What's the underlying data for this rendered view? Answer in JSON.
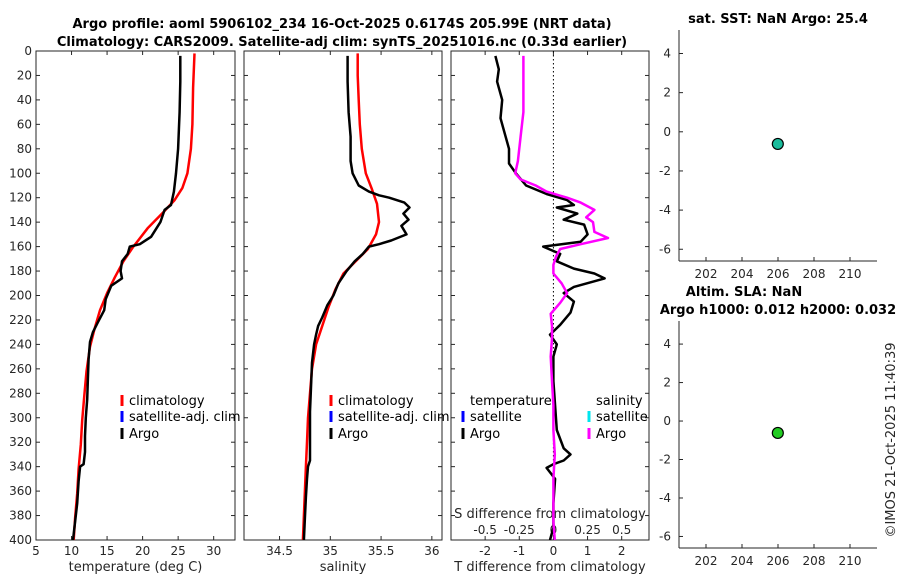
{
  "title": {
    "line1": "Argo profile: aoml 5906102_234 16-Oct-2025 0.6174S 205.99E (NRT data)",
    "line2": "Climatology: CARS2009. Satellite-adj clim: synTS_20251016.nc (0.33d earlier)"
  },
  "stamp": "©IMOS 21-Oct-2025 11:40:39",
  "colors": {
    "climatology": "#ff0000",
    "satellite": "#0000ff",
    "argo": "#000000",
    "salinity_argo": "#ff00ff",
    "salinity_satellite": "#00e5ee",
    "sst_marker": "#1abc9c",
    "sla_marker": "#22cc22"
  },
  "chart_data": [
    {
      "id": "temperature",
      "type": "line",
      "xlabel": "temperature (deg C)",
      "ylabel": "depth",
      "xlim": [
        5,
        33
      ],
      "ylim": [
        400,
        0
      ],
      "xticks": [
        5,
        10,
        15,
        20,
        25,
        30
      ],
      "yticks": [
        0,
        20,
        40,
        60,
        80,
        100,
        120,
        140,
        160,
        180,
        200,
        220,
        240,
        260,
        280,
        300,
        320,
        340,
        360,
        380,
        400
      ],
      "legend": [
        "climatology",
        "satellite-adj. clim",
        "Argo"
      ],
      "series": [
        {
          "name": "climatology",
          "color": "#ff0000",
          "points": [
            [
              27.3,
              2
            ],
            [
              27.1,
              30
            ],
            [
              27.0,
              60
            ],
            [
              26.8,
              80
            ],
            [
              26.3,
              100
            ],
            [
              25.6,
              112
            ],
            [
              24.5,
              122
            ],
            [
              22.9,
              132
            ],
            [
              20.7,
              145
            ],
            [
              18.7,
              160
            ],
            [
              17.3,
              172
            ],
            [
              16.1,
              185
            ],
            [
              15.0,
              198
            ],
            [
              14.0,
              212
            ],
            [
              13.2,
              228
            ],
            [
              12.6,
              242
            ],
            [
              12.1,
              262
            ],
            [
              11.8,
              282
            ],
            [
              11.5,
              302
            ],
            [
              11.3,
              322
            ],
            [
              11.0,
              342
            ],
            [
              10.8,
              362
            ],
            [
              10.5,
              382
            ],
            [
              10.3,
              400
            ]
          ]
        },
        {
          "name": "Argo",
          "color": "#000000",
          "points": [
            [
              25.3,
              4
            ],
            [
              25.3,
              25
            ],
            [
              25.2,
              50
            ],
            [
              25.0,
              80
            ],
            [
              24.7,
              100
            ],
            [
              24.4,
              115
            ],
            [
              24.0,
              126
            ],
            [
              23.1,
              130
            ],
            [
              22.5,
              140
            ],
            [
              21.2,
              152
            ],
            [
              19.6,
              158
            ],
            [
              18.2,
              160
            ],
            [
              17.9,
              166
            ],
            [
              17.1,
              172
            ],
            [
              16.9,
              180
            ],
            [
              17.1,
              186
            ],
            [
              15.6,
              192
            ],
            [
              14.8,
              203
            ],
            [
              14.6,
              212
            ],
            [
              13.7,
              222
            ],
            [
              13.0,
              230
            ],
            [
              12.6,
              238
            ],
            [
              12.4,
              252
            ],
            [
              12.3,
              268
            ],
            [
              12.2,
              285
            ],
            [
              12.0,
              300
            ],
            [
              11.9,
              315
            ],
            [
              11.9,
              328
            ],
            [
              11.7,
              338
            ],
            [
              11.2,
              340
            ],
            [
              11.0,
              352
            ],
            [
              10.8,
              370
            ],
            [
              10.5,
              385
            ],
            [
              10.2,
              400
            ]
          ]
        }
      ]
    },
    {
      "id": "salinity",
      "type": "line",
      "xlabel": "salinity",
      "xlim": [
        34.15,
        36.1
      ],
      "ylim": [
        400,
        0
      ],
      "xticks": [
        34.5,
        35,
        35.5,
        36
      ],
      "xticklabels": [
        "34.5",
        "35",
        "35.5",
        "36"
      ],
      "legend": [
        "climatology",
        "satellite-adj. clim",
        "Argo"
      ],
      "series": [
        {
          "name": "climatology",
          "color": "#ff0000",
          "points": [
            [
              35.27,
              2
            ],
            [
              35.27,
              20
            ],
            [
              35.28,
              40
            ],
            [
              35.29,
              60
            ],
            [
              35.31,
              80
            ],
            [
              35.35,
              100
            ],
            [
              35.41,
              113
            ],
            [
              35.46,
              125
            ],
            [
              35.48,
              140
            ],
            [
              35.45,
              150
            ],
            [
              35.37,
              162
            ],
            [
              35.25,
              172
            ],
            [
              35.13,
              182
            ],
            [
              35.05,
              195
            ],
            [
              34.98,
              210
            ],
            [
              34.92,
              225
            ],
            [
              34.86,
              240
            ],
            [
              34.82,
              260
            ],
            [
              34.8,
              280
            ],
            [
              34.78,
              300
            ],
            [
              34.77,
              320
            ],
            [
              34.76,
              340
            ],
            [
              34.75,
              360
            ],
            [
              34.74,
              380
            ],
            [
              34.73,
              400
            ]
          ]
        },
        {
          "name": "Argo",
          "color": "#000000",
          "points": [
            [
              35.17,
              4
            ],
            [
              35.17,
              25
            ],
            [
              35.18,
              50
            ],
            [
              35.2,
              70
            ],
            [
              35.2,
              90
            ],
            [
              35.22,
              100
            ],
            [
              35.28,
              110
            ],
            [
              35.38,
              115
            ],
            [
              35.48,
              118
            ],
            [
              35.58,
              120
            ],
            [
              35.73,
              124
            ],
            [
              35.78,
              128
            ],
            [
              35.72,
              133
            ],
            [
              35.77,
              138
            ],
            [
              35.7,
              143
            ],
            [
              35.75,
              150
            ],
            [
              35.6,
              155
            ],
            [
              35.48,
              158
            ],
            [
              35.38,
              160
            ],
            [
              35.32,
              166
            ],
            [
              35.24,
              172
            ],
            [
              35.16,
              180
            ],
            [
              35.08,
              190
            ],
            [
              35.03,
              200
            ],
            [
              34.97,
              208
            ],
            [
              34.92,
              218
            ],
            [
              34.88,
              225
            ],
            [
              34.86,
              232
            ],
            [
              34.84,
              240
            ],
            [
              34.82,
              255
            ],
            [
              34.81,
              275
            ],
            [
              34.8,
              295
            ],
            [
              34.8,
              315
            ],
            [
              34.8,
              335
            ],
            [
              34.78,
              340
            ],
            [
              34.77,
              350
            ],
            [
              34.76,
              365
            ],
            [
              34.75,
              382
            ],
            [
              34.74,
              400
            ]
          ]
        }
      ]
    },
    {
      "id": "differences",
      "type": "line",
      "xlabel": "T difference from climatology",
      "top_label": "S difference from climatology",
      "xlim": [
        -3,
        2.8
      ],
      "ylim": [
        400,
        0
      ],
      "xticks": [
        -2,
        -1,
        0,
        1,
        2
      ],
      "xticklabels": [
        "-2",
        "-1",
        "0",
        "1",
        "2"
      ],
      "s_xticks": [
        -0.5,
        -0.25,
        0,
        0.25,
        0.5
      ],
      "s_xticklabels": [
        "-0.5",
        "-0.25",
        "0",
        "0.25",
        "0.5"
      ],
      "s_scale": 4,
      "legend_temperature_title": "temperature",
      "legend_salinity_title": "salinity",
      "legend_temperature": [
        "satellite",
        "Argo"
      ],
      "legend_salinity": [
        "satellite",
        "Argo"
      ],
      "series": [
        {
          "name": "T Argo",
          "color": "#000000",
          "points": [
            [
              -1.7,
              4
            ],
            [
              -1.6,
              15
            ],
            [
              -1.65,
              25
            ],
            [
              -1.5,
              40
            ],
            [
              -1.55,
              55
            ],
            [
              -1.4,
              70
            ],
            [
              -1.3,
              80
            ],
            [
              -1.3,
              92
            ],
            [
              -1.1,
              100
            ],
            [
              -0.8,
              110
            ],
            [
              -0.2,
              117
            ],
            [
              0.4,
              122
            ],
            [
              0.6,
              126
            ],
            [
              0.1,
              128
            ],
            [
              0.7,
              133
            ],
            [
              0.3,
              138
            ],
            [
              0.9,
              142
            ],
            [
              1.0,
              150
            ],
            [
              0.8,
              156
            ],
            [
              -0.3,
              160
            ],
            [
              0.2,
              166
            ],
            [
              0.1,
              172
            ],
            [
              0.6,
              178
            ],
            [
              1.2,
              182
            ],
            [
              1.5,
              186
            ],
            [
              0.6,
              193
            ],
            [
              0.3,
              198
            ],
            [
              0.6,
              205
            ],
            [
              0.5,
              214
            ],
            [
              0.2,
              224
            ],
            [
              -0.1,
              232
            ],
            [
              0.1,
              240
            ],
            [
              0.0,
              250
            ],
            [
              0.0,
              270
            ],
            [
              0.05,
              290
            ],
            [
              0.1,
              310
            ],
            [
              0.3,
              325
            ],
            [
              0.5,
              330
            ],
            [
              0.3,
              335
            ],
            [
              0.0,
              338
            ],
            [
              -0.2,
              341
            ],
            [
              0.05,
              350
            ],
            [
              0.0,
              370
            ],
            [
              0.0,
              390
            ],
            [
              -0.1,
              400
            ]
          ]
        },
        {
          "name": "S Argo",
          "color": "#ff00ff",
          "points": [
            [
              -0.22,
              4
            ],
            [
              -0.22,
              25
            ],
            [
              -0.22,
              50
            ],
            [
              -0.24,
              70
            ],
            [
              -0.26,
              90
            ],
            [
              -0.28,
              100
            ],
            [
              -0.24,
              105
            ],
            [
              -0.13,
              110
            ],
            [
              -0.05,
              115
            ],
            [
              0.04,
              118
            ],
            [
              0.1,
              120
            ],
            [
              0.2,
              124
            ],
            [
              0.3,
              130
            ],
            [
              0.24,
              136
            ],
            [
              0.29,
              140
            ],
            [
              0.3,
              148
            ],
            [
              0.4,
              153
            ],
            [
              0.2,
              158
            ],
            [
              0.05,
              162
            ],
            [
              0.02,
              168
            ],
            [
              0.0,
              175
            ],
            [
              0.0,
              182
            ],
            [
              0.06,
              190
            ],
            [
              0.1,
              198
            ],
            [
              0.05,
              206
            ],
            [
              -0.02,
              215
            ],
            [
              -0.01,
              225
            ],
            [
              -0.01,
              235
            ],
            [
              -0.02,
              250
            ],
            [
              -0.01,
              270
            ],
            [
              0.0,
              290
            ],
            [
              0.0,
              310
            ],
            [
              0.01,
              330
            ],
            [
              0.0,
              350
            ],
            [
              0.0,
              370
            ],
            [
              0.0,
              385
            ],
            [
              0.01,
              400
            ]
          ]
        }
      ]
    },
    {
      "id": "sst",
      "type": "scatter",
      "title": "sat. SST: NaN Argo: 25.4",
      "xlim": [
        200.5,
        211.5
      ],
      "ylim": [
        -6.6,
        5.2
      ],
      "xticks": [
        202,
        204,
        206,
        208,
        210
      ],
      "yticks": [
        -6,
        -4,
        -2,
        0,
        2,
        4
      ],
      "points": [
        [
          205.99,
          -0.62
        ]
      ]
    },
    {
      "id": "sla",
      "type": "scatter",
      "title_line1": "Altim. SLA: NaN",
      "title_line2": "Argo h1000: 0.012 h2000: 0.032",
      "xlim": [
        200.5,
        211.5
      ],
      "ylim": [
        -6.6,
        5.2
      ],
      "xticks": [
        202,
        204,
        206,
        208,
        210
      ],
      "yticks": [
        -6,
        -4,
        -2,
        0,
        2,
        4
      ],
      "points": [
        [
          205.99,
          -0.62
        ]
      ]
    }
  ]
}
